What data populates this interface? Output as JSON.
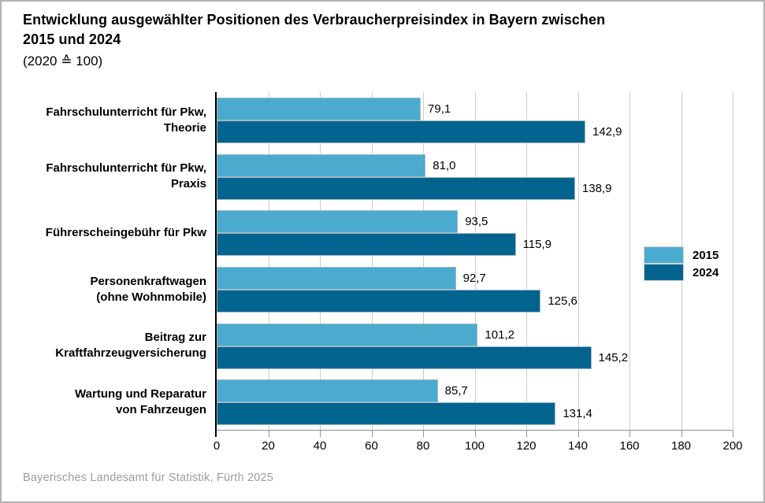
{
  "header": {
    "title": "Entwicklung ausgewählter Positionen des Verbraucherpreisindex in Bayern zwischen\n2015 und 2024",
    "subtitle": "(2020 ≙ 100)"
  },
  "footer": {
    "source": "Bayerisches Landesamt für Statistik, Fürth 2025"
  },
  "colors": {
    "series_2015": "#4aabce",
    "series_2024": "#00648f",
    "gridline": "#cbcbcb",
    "axis": "#8f8f8f",
    "text": "#000000",
    "source_text": "#9c9c9c",
    "frame_border": "#b2b2b2"
  },
  "chart_data": {
    "type": "bar",
    "orientation": "horizontal",
    "title": "Entwicklung ausgewählter Positionen des Verbraucherpreisindex in Bayern zwischen 2015 und 2024",
    "subtitle": "(2020 ≙ 100)",
    "categories": [
      "Fahrschulunterricht für Pkw,\nTheorie",
      "Fahrschulunterricht für Pkw,\nPraxis",
      "Führerscheingebühr für Pkw",
      "Personenkraftwagen\n(ohne Wohnmobile)",
      "Beitrag zur\nKraftfahrzeugversicherung",
      "Wartung und Reparatur\nvon Fahrzeugen"
    ],
    "series": [
      {
        "name": "2015",
        "color": "#4aabce",
        "values": [
          79.1,
          81.0,
          93.5,
          92.7,
          101.2,
          85.7
        ],
        "value_labels": [
          "79,1",
          "81,0",
          "93,5",
          "92,7",
          "101,2",
          "85,7"
        ]
      },
      {
        "name": "2024",
        "color": "#00648f",
        "values": [
          142.9,
          138.9,
          115.9,
          125.6,
          145.2,
          131.4
        ],
        "value_labels": [
          "142,9",
          "138,9",
          "115,9",
          "125,6",
          "145,2",
          "131,4"
        ]
      }
    ],
    "xlabel": "",
    "ylabel": "",
    "xlim": [
      0,
      200
    ],
    "xticks": [
      0,
      20,
      40,
      60,
      80,
      100,
      120,
      140,
      160,
      180,
      200
    ],
    "grid": true,
    "legend_position": "right-middle"
  }
}
